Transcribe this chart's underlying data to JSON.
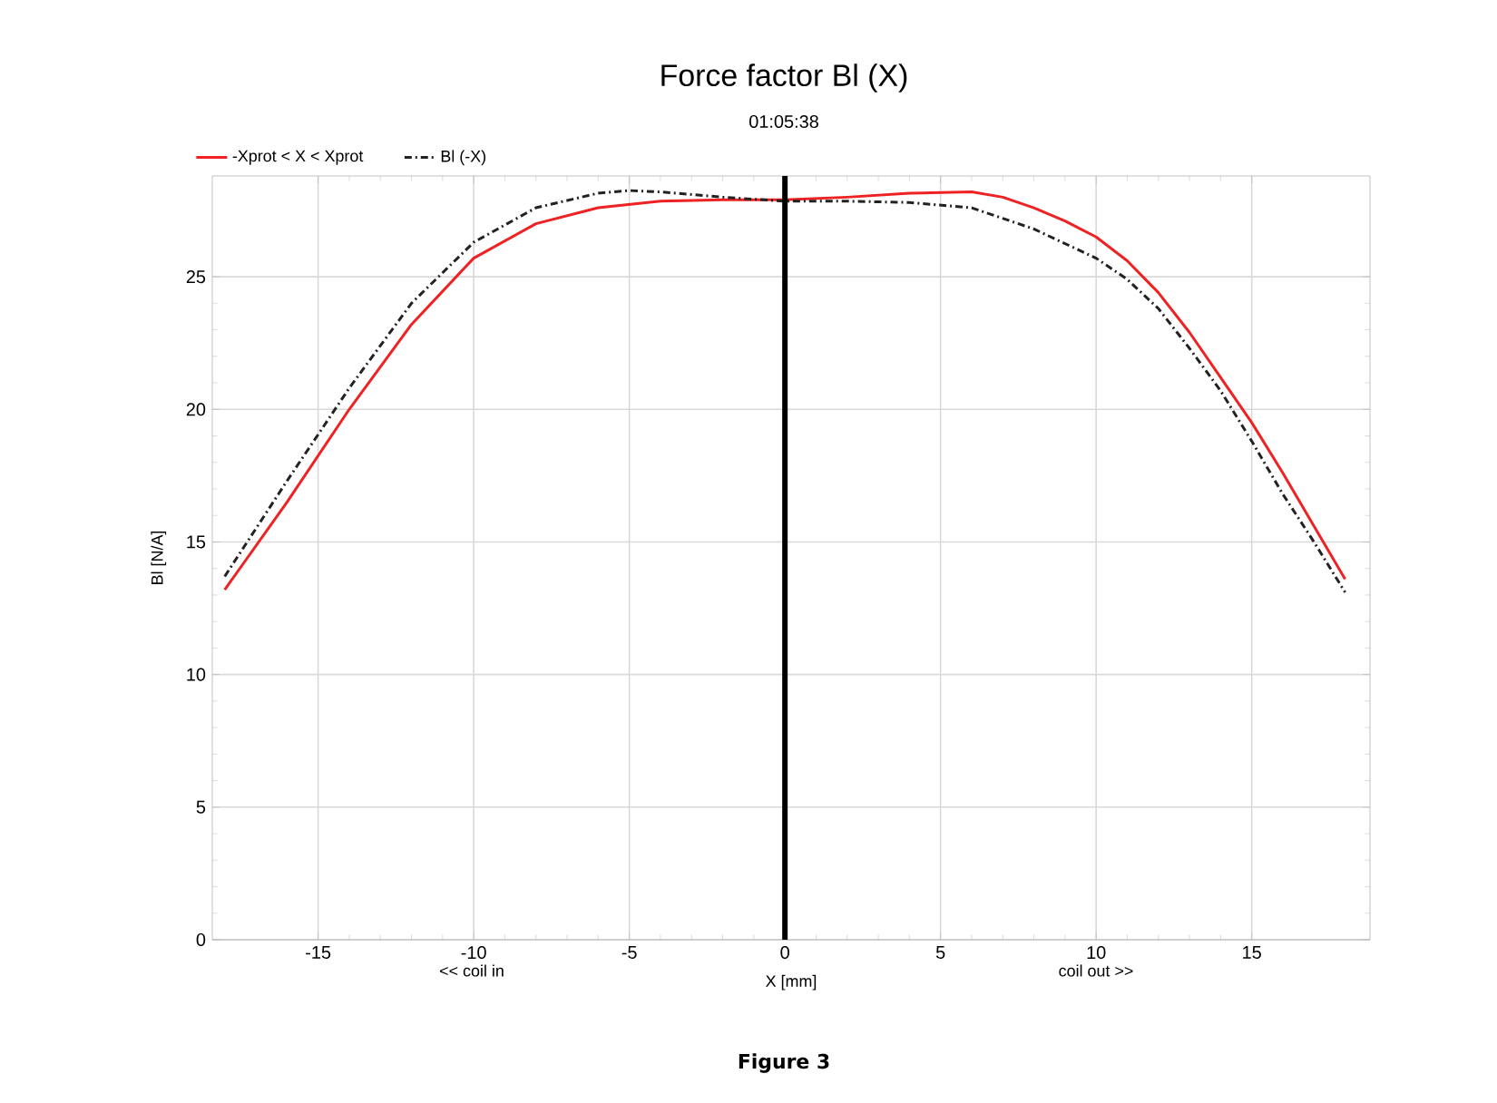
{
  "chart_data": {
    "type": "line",
    "title": "Force factor Bl (X)",
    "subtitle": "01:05:38",
    "xlabel": "X [mm]",
    "ylabel": "Bl [N/A]",
    "annotations": [
      "<< coil in",
      "coil out >>",
      "Figure 3"
    ],
    "series": [
      {
        "name": "-Xprot < X < Xprot",
        "color": "#ee2222",
        "line_style": "solid",
        "x": [
          -18,
          -16,
          -14,
          -12,
          -10,
          -8,
          -6,
          -4,
          -2,
          0,
          2,
          4,
          6,
          7,
          8,
          9,
          10,
          11,
          12,
          13,
          14,
          15,
          16,
          17,
          18
        ],
        "values": [
          13.2,
          16.5,
          20.0,
          23.2,
          25.7,
          27.0,
          27.6,
          27.85,
          27.9,
          27.9,
          28.0,
          28.15,
          28.2,
          28.0,
          27.6,
          27.1,
          26.5,
          25.6,
          24.4,
          22.9,
          21.2,
          19.5,
          17.6,
          15.6,
          13.6
        ]
      },
      {
        "name": "Bl (-X)",
        "color": "#222222",
        "line_style": "dashed",
        "x": [
          -18,
          -16,
          -14,
          -12,
          -10,
          -8,
          -6,
          -5,
          -4,
          -2,
          0,
          2,
          4,
          6,
          8,
          10,
          11,
          12,
          13,
          14,
          15,
          16,
          17,
          18
        ],
        "values": [
          13.7,
          17.3,
          20.8,
          24.0,
          26.3,
          27.6,
          28.15,
          28.25,
          28.2,
          28.0,
          27.85,
          27.85,
          27.8,
          27.6,
          26.8,
          25.7,
          24.9,
          23.8,
          22.3,
          20.7,
          18.8,
          16.8,
          15.0,
          13.1
        ]
      }
    ],
    "xlim": [
      -18.4,
      18.8
    ],
    "xticks": [
      -15,
      -10,
      -5,
      0,
      5,
      10,
      15
    ],
    "ylim": [
      0,
      28.8
    ],
    "yticks": [
      0,
      5,
      10,
      15,
      20,
      25
    ],
    "ref_lines": [
      {
        "axis": "x",
        "value": 0,
        "color": "#000000"
      }
    ],
    "grid": true,
    "legend": "top left",
    "marker": "none"
  }
}
